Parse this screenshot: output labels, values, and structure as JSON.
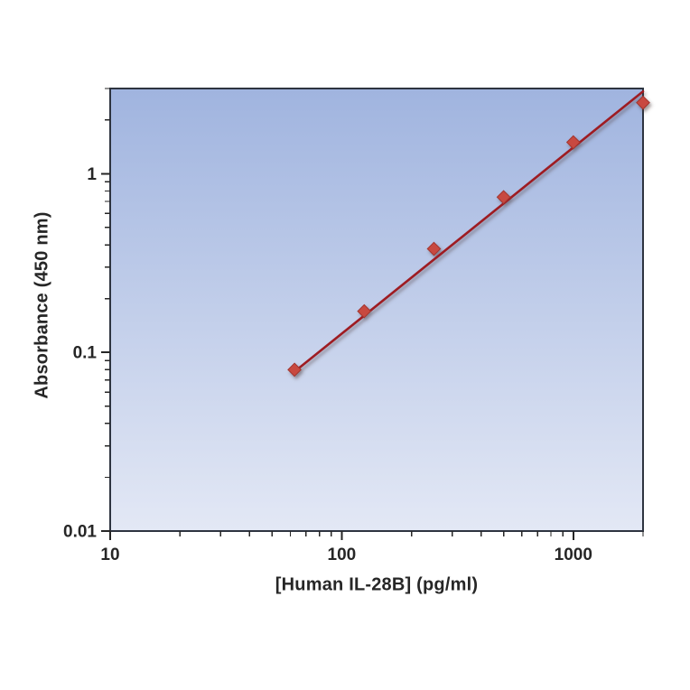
{
  "figure": {
    "background": "#ffffff"
  },
  "chart_data": {
    "type": "scatter",
    "title": "",
    "xlabel": "[Human IL-28B] (pg/ml)",
    "ylabel": "Absorbance (450 nm)",
    "x_scale": "log",
    "y_scale": "log",
    "xlim": [
      10,
      2000
    ],
    "ylim": [
      0.01,
      3
    ],
    "grid": false,
    "legend": false,
    "x_ticks": [
      {
        "value": 10,
        "label": "10"
      },
      {
        "value": 100,
        "label": "100"
      },
      {
        "value": 1000,
        "label": "1000"
      }
    ],
    "y_ticks": [
      {
        "value": 1,
        "label": "1"
      },
      {
        "value": 0.1,
        "label": "0.1"
      },
      {
        "value": 0.01,
        "label": "0.01"
      }
    ],
    "minor_log_ticks": true,
    "series": [
      {
        "marker": "diamond",
        "points": [
          [
            62.5,
            0.08
          ],
          [
            125,
            0.17
          ],
          [
            250,
            0.38
          ],
          [
            500,
            0.74
          ],
          [
            1000,
            1.5
          ],
          [
            2000,
            2.5
          ]
        ]
      }
    ],
    "trendline": {
      "from": [
        62.5,
        0.078
      ],
      "to": [
        2000,
        2.89
      ]
    }
  },
  "colors": {
    "plot_gradient_top": "#a0b4df",
    "plot_gradient_bottom": "#e3e8f5",
    "plot_border": "#2e3440",
    "tick": "#262626",
    "text": "#262626",
    "marker_fill": "#c8483f",
    "marker_stroke": "#a2362f",
    "trend_line": "#9e1b23"
  }
}
